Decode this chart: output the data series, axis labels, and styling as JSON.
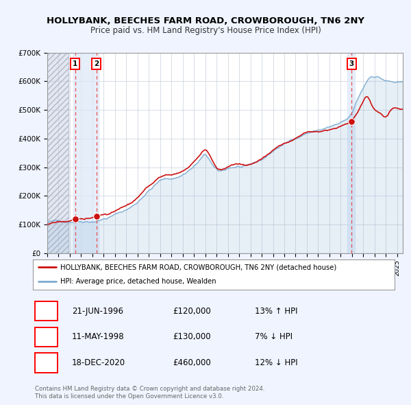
{
  "title": "HOLLYBANK, BEECHES FARM ROAD, CROWBOROUGH, TN6 2NY",
  "subtitle": "Price paid vs. HM Land Registry's House Price Index (HPI)",
  "legend_label_red": "HOLLYBANK, BEECHES FARM ROAD, CROWBOROUGH, TN6 2NY (detached house)",
  "legend_label_blue": "HPI: Average price, detached house, Wealden",
  "footer_line1": "Contains HM Land Registry data © Crown copyright and database right 2024.",
  "footer_line2": "This data is licensed under the Open Government Licence v3.0.",
  "sales": [
    {
      "num": "1",
      "date_str": "21-JUN-1996",
      "date_x": 1996.47,
      "price": 120000,
      "label": "£120,000",
      "hpi_diff": "13% ↑ HPI"
    },
    {
      "num": "2",
      "date_str": "11-MAY-1998",
      "date_x": 1998.36,
      "price": 130000,
      "label": "£130,000",
      "hpi_diff": "7% ↓ HPI"
    },
    {
      "num": "3",
      "date_str": "18-DEC-2020",
      "date_x": 2020.96,
      "price": 460000,
      "label": "£460,000",
      "hpi_diff": "12% ↓ HPI"
    }
  ],
  "xmin": 1994.0,
  "xmax": 2025.5,
  "ymin": 0,
  "ymax": 700000,
  "yticks": [
    0,
    100000,
    200000,
    300000,
    400000,
    500000,
    600000,
    700000
  ],
  "ytick_labels": [
    "£0",
    "£100K",
    "£200K",
    "£300K",
    "£400K",
    "£500K",
    "£600K",
    "£700K"
  ],
  "background_color": "#f0f4ff",
  "plot_bg_color": "#ffffff",
  "grid_color": "#c8d0dc",
  "red_color": "#cc1111",
  "blue_color": "#7aaad0",
  "vline_color": "#ee4444",
  "shade_color": "#dce8f8",
  "hatch_color": "#c8d0e0",
  "num_points": 380,
  "noise_scale_hpi": 3500,
  "noise_scale_prop": 2500
}
